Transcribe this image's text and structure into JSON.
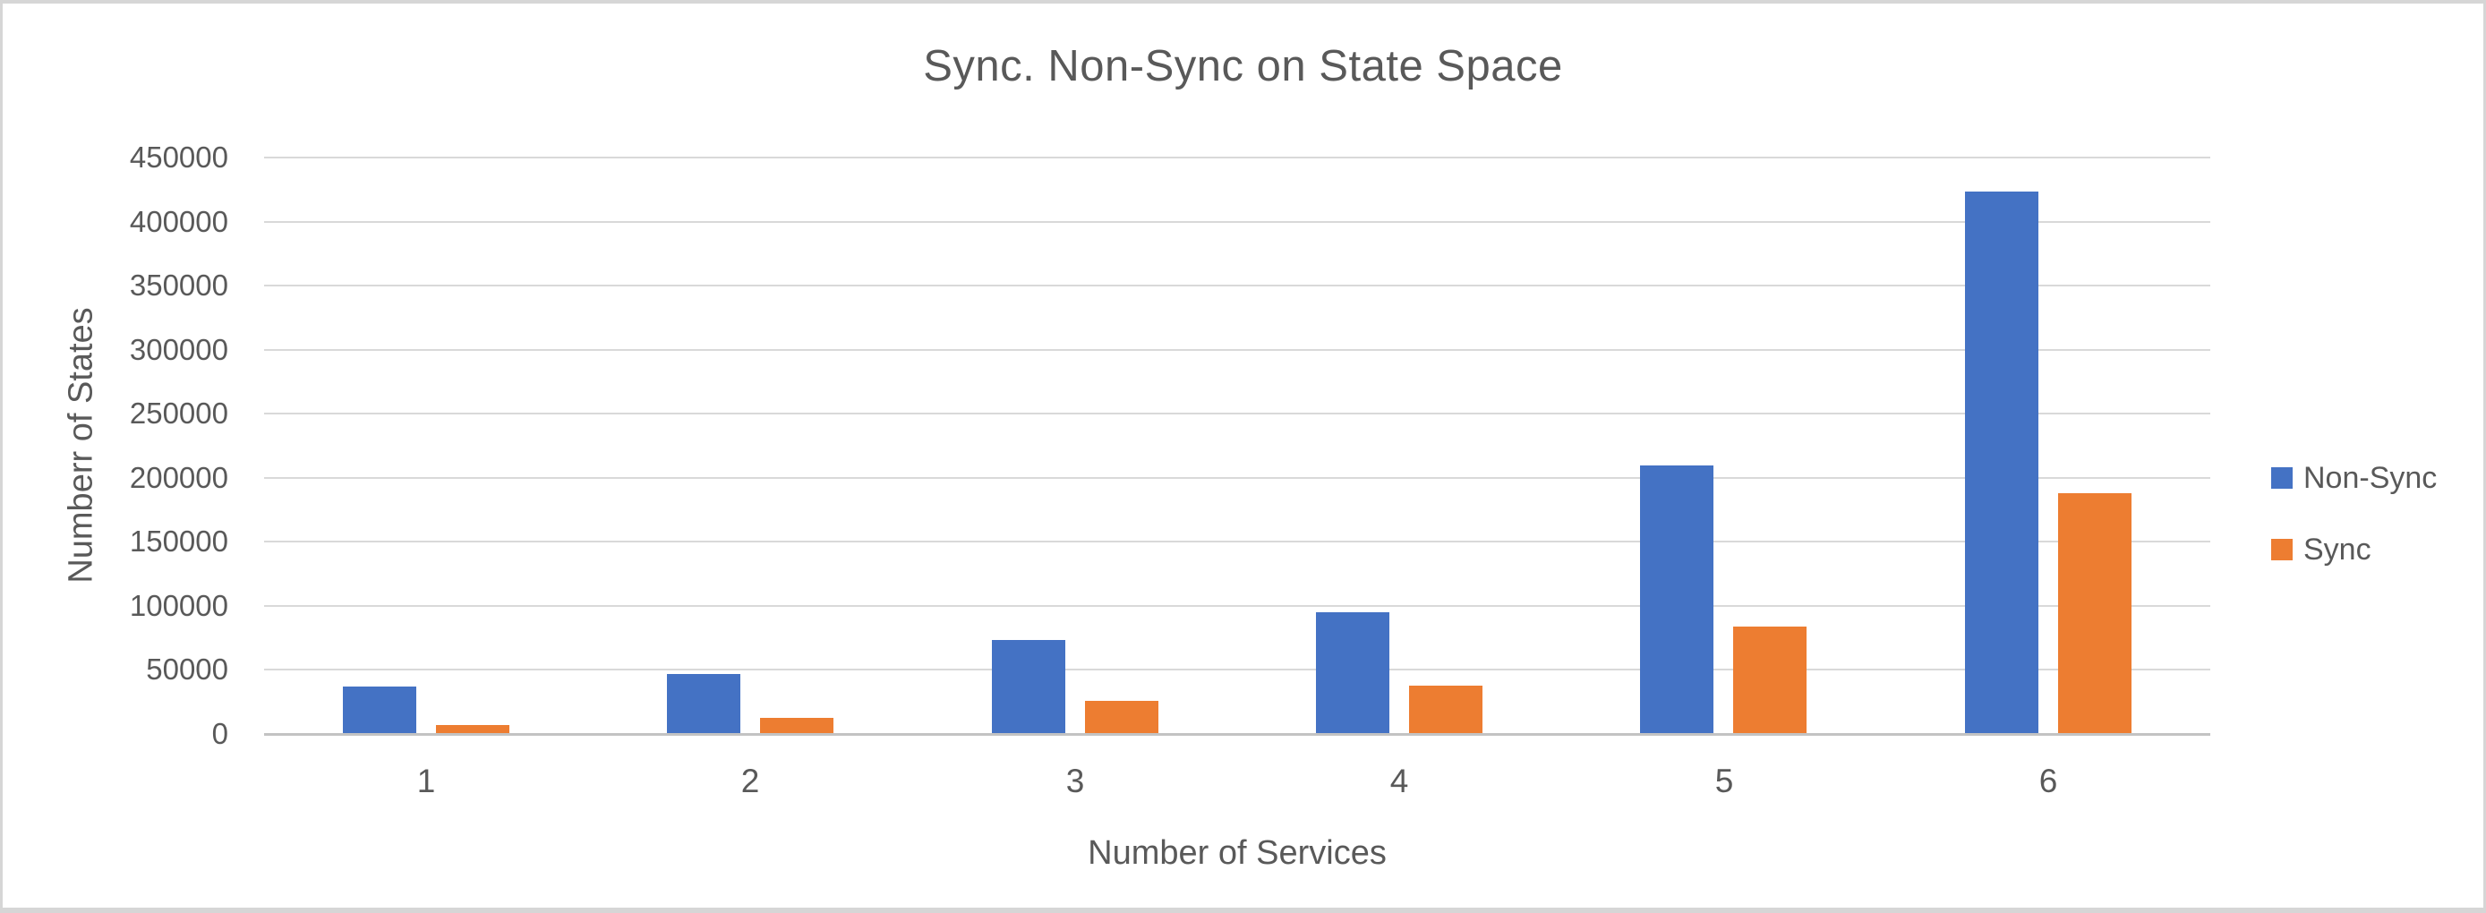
{
  "chart_data": {
    "type": "bar",
    "title": "Sync. Non-Sync on State Space",
    "xlabel": "Number of Services",
    "ylabel": "Numberr of States",
    "categories": [
      "1",
      "2",
      "3",
      "4",
      "5",
      "6"
    ],
    "series": [
      {
        "name": "Non-Sync",
        "color": "#4472C4",
        "values": [
          36000,
          46000,
          73000,
          94000,
          209000,
          423000
        ]
      },
      {
        "name": "Sync",
        "color": "#ED7D31",
        "values": [
          6000,
          12000,
          25000,
          37000,
          83000,
          187000
        ]
      }
    ],
    "ylim": [
      0,
      450000
    ],
    "ytick_step": 50000,
    "grid": true,
    "legend_position": "right"
  },
  "colors": {
    "text": "#595959",
    "gridline": "#D9D9D9",
    "axis_line": "#C3C3C3",
    "frame_border": "#D6D6D6",
    "background": "#FFFFFF"
  }
}
